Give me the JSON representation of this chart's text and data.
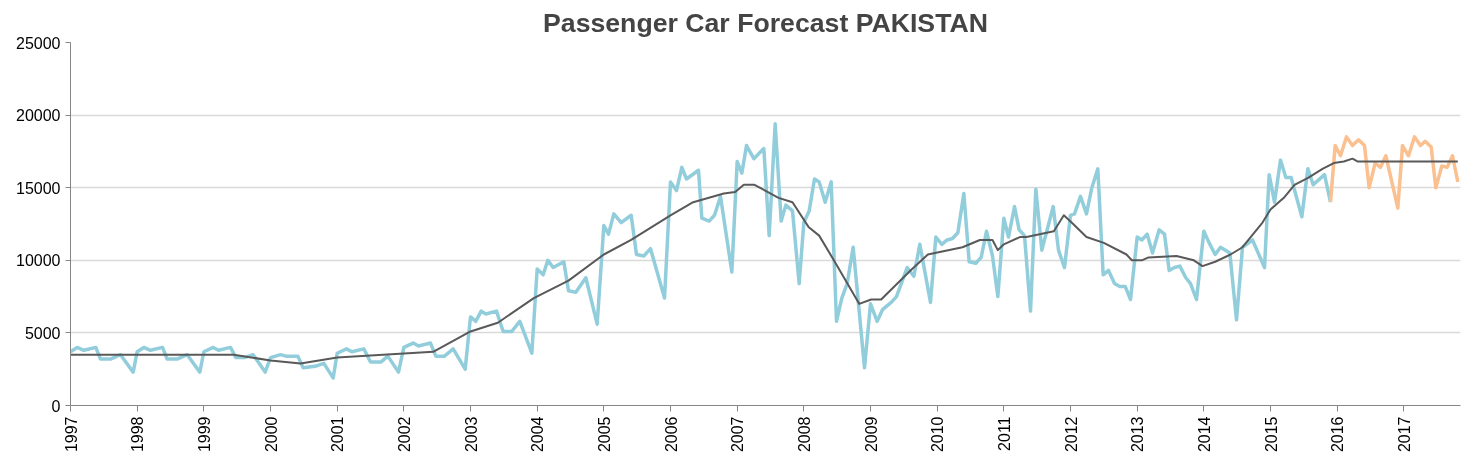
{
  "chart_data": {
    "type": "line",
    "title": "Passenger Car Forecast PAKISTAN",
    "xlim": [
      1997,
      2017.85
    ],
    "xticks": [
      1997,
      1998,
      1999,
      2000,
      2001,
      2002,
      2003,
      2004,
      2005,
      2006,
      2007,
      2008,
      2009,
      2010,
      2011,
      2012,
      2013,
      2014,
      2015,
      2016,
      2017
    ],
    "ylim": [
      0,
      25000
    ],
    "yticks": [
      0,
      5000,
      10000,
      15000,
      20000,
      25000
    ],
    "grid": "y",
    "series": [
      {
        "color": "#92cddc",
        "x": [
          1997.0,
          1997.1,
          1997.2,
          1997.38,
          1997.45,
          1997.6,
          1997.75,
          1997.94,
          1998.0,
          1998.1,
          1998.2,
          1998.38,
          1998.45,
          1998.6,
          1998.75,
          1998.94,
          1999.0,
          1999.14,
          1999.22,
          1999.4,
          1999.48,
          1999.61,
          1999.74,
          1999.92,
          2000.0,
          2000.15,
          2000.23,
          2000.41,
          2000.49,
          2000.67,
          2000.8,
          2000.94,
          2001.0,
          2001.14,
          2001.22,
          2001.4,
          2001.5,
          2001.66,
          2001.76,
          2001.92,
          2002.0,
          2002.14,
          2002.22,
          2002.4,
          2002.48,
          2002.61,
          2002.74,
          2002.92,
          2003.0,
          2003.08,
          2003.16,
          2003.23,
          2003.39,
          2003.49,
          2003.62,
          2003.74,
          2003.92,
          2004.0,
          2004.09,
          2004.16,
          2004.24,
          2004.4,
          2004.47,
          2004.58,
          2004.73,
          2004.9,
          2005.0,
          2005.07,
          2005.15,
          2005.26,
          2005.41,
          2005.49,
          2005.6,
          2005.7,
          2005.91,
          2006.0,
          2006.09,
          2006.17,
          2006.24,
          2006.42,
          2006.47,
          2006.58,
          2006.66,
          2006.75,
          2006.92,
          2007.0,
          2007.07,
          2007.14,
          2007.25,
          2007.4,
          2007.48,
          2007.57,
          2007.66,
          2007.73,
          2007.83,
          2007.93,
          2008.0,
          2008.08,
          2008.16,
          2008.23,
          2008.32,
          2008.41,
          2008.49,
          2008.57,
          2008.65,
          2008.74,
          2008.91,
          2009.0,
          2009.1,
          2009.18,
          2009.31,
          2009.39,
          2009.47,
          2009.55,
          2009.65,
          2009.74,
          2009.9,
          2009.98,
          2010.07,
          2010.15,
          2010.23,
          2010.31,
          2010.4,
          2010.48,
          2010.58,
          2010.66,
          2010.74,
          2010.83,
          2010.91,
          2011.0,
          2011.07,
          2011.16,
          2011.23,
          2011.31,
          2011.4,
          2011.48,
          2011.57,
          2011.65,
          2011.74,
          2011.82,
          2011.91,
          2012.0,
          2012.06,
          2012.15,
          2012.24,
          2012.32,
          2012.41,
          2012.49,
          2012.57,
          2012.66,
          2012.74,
          2012.82,
          2012.9,
          2013.0,
          2013.07,
          2013.15,
          2013.23,
          2013.33,
          2013.41,
          2013.48,
          2013.56,
          2013.64,
          2013.73,
          2013.8,
          2013.89,
          2014.0,
          2014.08,
          2014.17,
          2014.25,
          2014.39,
          2014.49,
          2014.58,
          2014.73,
          2014.91,
          2014.98,
          2015.06,
          2015.15,
          2015.23,
          2015.31,
          2015.47,
          2015.56,
          2015.64,
          2015.81,
          2015.9
        ],
        "values": [
          3700,
          4000,
          3800,
          4000,
          3200,
          3200,
          3500,
          2300,
          3700,
          4000,
          3800,
          4000,
          3200,
          3200,
          3500,
          2300,
          3700,
          4000,
          3800,
          4000,
          3300,
          3300,
          3500,
          2300,
          3300,
          3500,
          3400,
          3400,
          2600,
          2700,
          2900,
          1900,
          3600,
          3900,
          3700,
          3900,
          3000,
          3000,
          3400,
          2300,
          4000,
          4300,
          4100,
          4300,
          3400,
          3400,
          3900,
          2500,
          6100,
          5800,
          6500,
          6300,
          6500,
          5100,
          5100,
          5800,
          3600,
          9400,
          9000,
          10000,
          9500,
          9900,
          7900,
          7800,
          8800,
          5600,
          12400,
          11800,
          13200,
          12600,
          13100,
          10400,
          10300,
          10800,
          7400,
          15400,
          14800,
          16400,
          15600,
          16200,
          12900,
          12700,
          13100,
          14400,
          9200,
          16800,
          16000,
          17900,
          17000,
          17700,
          11700,
          19400,
          12700,
          13800,
          13400,
          8400,
          12600,
          13400,
          15600,
          15400,
          14000,
          15400,
          5800,
          7400,
          8400,
          10900,
          2600,
          7000,
          5800,
          6600,
          7100,
          7500,
          8500,
          9500,
          8900,
          11100,
          7100,
          11600,
          11100,
          11400,
          11500,
          11900,
          14600,
          9900,
          9800,
          10200,
          12000,
          10300,
          7500,
          12900,
          11600,
          13700,
          12100,
          11700,
          6500,
          14900,
          10700,
          12100,
          13700,
          10700,
          9500,
          13100,
          13200,
          14400,
          13200,
          15000,
          16300,
          9000,
          9300,
          8400,
          8200,
          8200,
          7300,
          11600,
          11400,
          11800,
          10500,
          12100,
          11800,
          9300,
          9500,
          9600,
          8800,
          8400,
          7300,
          12000,
          11200,
          10400,
          10900,
          10500,
          5900,
          10900,
          11400,
          9500,
          15900,
          14000,
          16900,
          15700,
          15700,
          13000,
          16300,
          15200,
          15900,
          14000
        ]
      },
      {
        "color": "#fac090",
        "x": [
          2015.9,
          2015.97,
          2016.05,
          2016.14,
          2016.23,
          2016.32,
          2016.41,
          2016.48,
          2016.57,
          2016.65,
          2016.73,
          2016.91,
          2016.98,
          2017.07,
          2017.16,
          2017.25,
          2017.32,
          2017.41,
          2017.48,
          2017.57,
          2017.65,
          2017.73,
          2017.81
        ],
        "values": [
          14000,
          17900,
          17200,
          18500,
          17900,
          18300,
          17900,
          15000,
          16700,
          16400,
          17200,
          13600,
          17900,
          17200,
          18500,
          17900,
          18200,
          17800,
          15000,
          16500,
          16400,
          17200,
          15400
        ]
      },
      {
        "color": "#595959",
        "x": [
          1997.0,
          1999.45,
          2000.0,
          2000.45,
          2001.0,
          2002.44,
          2003.0,
          2003.41,
          2003.95,
          2004.47,
          2005.0,
          2005.41,
          2006.0,
          2006.34,
          2006.8,
          2006.97,
          2007.1,
          2007.26,
          2007.62,
          2007.83,
          2008.07,
          2008.23,
          2008.49,
          2008.83,
          2009.01,
          2009.16,
          2009.6,
          2009.86,
          2010.38,
          2010.64,
          2010.83,
          2010.91,
          2011.0,
          2011.24,
          2011.34,
          2011.75,
          2011.9,
          2012.04,
          2012.24,
          2012.5,
          2012.84,
          2012.92,
          2013.07,
          2013.17,
          2013.59,
          2013.85,
          2013.98,
          2014.17,
          2014.4,
          2014.58,
          2014.88,
          2015.0,
          2015.2,
          2015.36,
          2015.57,
          2015.78,
          2015.95,
          2016.1,
          2016.23,
          2016.31,
          2017.81
        ],
        "values": [
          3500,
          3500,
          3100,
          2900,
          3300,
          3700,
          5100,
          5700,
          7400,
          8600,
          10400,
          11400,
          13100,
          14000,
          14600,
          14700,
          15200,
          15200,
          14300,
          14000,
          12300,
          11700,
          9700,
          7000,
          7300,
          7300,
          9300,
          10400,
          10900,
          11400,
          11400,
          10700,
          11100,
          11600,
          11600,
          12000,
          13100,
          12500,
          11600,
          11200,
          10400,
          10000,
          10000,
          10200,
          10300,
          10000,
          9600,
          9900,
          10400,
          10900,
          12600,
          13500,
          14300,
          15200,
          15700,
          16300,
          16700,
          16800,
          17000,
          16800,
          16800
        ]
      }
    ]
  }
}
